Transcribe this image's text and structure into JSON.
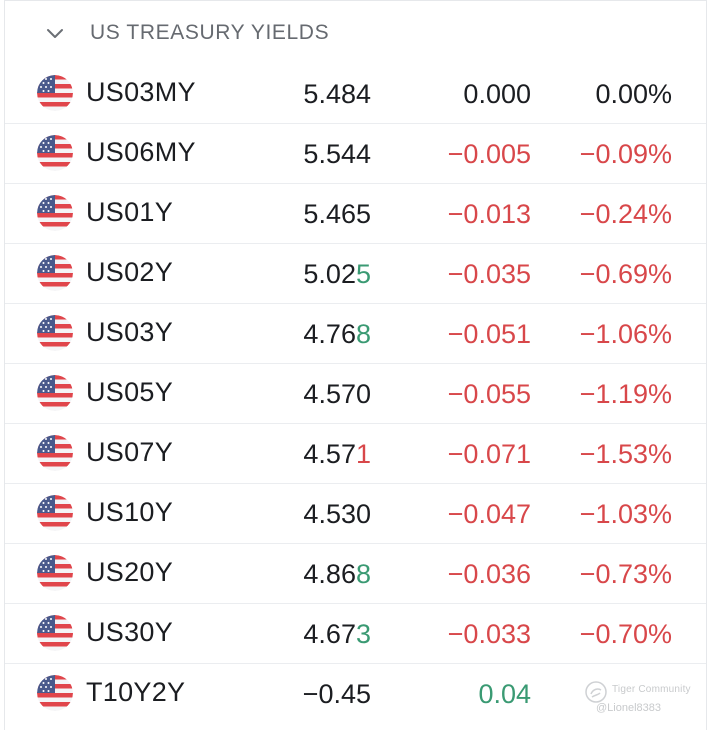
{
  "section": {
    "title": "US TREASURY YIELDS",
    "collapse_icon": "chevron-down-icon"
  },
  "colors": {
    "up": "#3a9a73",
    "down": "#d8474a",
    "neutral": "#1b1d21"
  },
  "rows": [
    {
      "symbol": "US03MY",
      "price_main": "5.484",
      "price_last": "",
      "last_dir": "",
      "change": "0.000",
      "change_pct": "0.00%",
      "dir": "neutral"
    },
    {
      "symbol": "US06MY",
      "price_main": "5.544",
      "price_last": "",
      "last_dir": "",
      "change": "−0.005",
      "change_pct": "−0.09%",
      "dir": "neg"
    },
    {
      "symbol": "US01Y",
      "price_main": "5.465",
      "price_last": "",
      "last_dir": "",
      "change": "−0.013",
      "change_pct": "−0.24%",
      "dir": "neg"
    },
    {
      "symbol": "US02Y",
      "price_main": "5.02",
      "price_last": "5",
      "last_dir": "up",
      "change": "−0.035",
      "change_pct": "−0.69%",
      "dir": "neg"
    },
    {
      "symbol": "US03Y",
      "price_main": "4.76",
      "price_last": "8",
      "last_dir": "up",
      "change": "−0.051",
      "change_pct": "−1.06%",
      "dir": "neg"
    },
    {
      "symbol": "US05Y",
      "price_main": "4.570",
      "price_last": "",
      "last_dir": "",
      "change": "−0.055",
      "change_pct": "−1.19%",
      "dir": "neg"
    },
    {
      "symbol": "US07Y",
      "price_main": "4.57",
      "price_last": "1",
      "last_dir": "down",
      "change": "−0.071",
      "change_pct": "−1.53%",
      "dir": "neg"
    },
    {
      "symbol": "US10Y",
      "price_main": "4.530",
      "price_last": "",
      "last_dir": "",
      "change": "−0.047",
      "change_pct": "−1.03%",
      "dir": "neg"
    },
    {
      "symbol": "US20Y",
      "price_main": "4.86",
      "price_last": "8",
      "last_dir": "up",
      "change": "−0.036",
      "change_pct": "−0.73%",
      "dir": "neg"
    },
    {
      "symbol": "US30Y",
      "price_main": "4.67",
      "price_last": "3",
      "last_dir": "up",
      "change": "−0.033",
      "change_pct": "−0.70%",
      "dir": "neg"
    },
    {
      "symbol": "T10Y2Y",
      "price_main": "−0.45",
      "price_last": "",
      "last_dir": "",
      "change": "0.04",
      "change_pct": "",
      "dir": "pos"
    }
  ],
  "watermark": {
    "brand": "Tiger Community",
    "user": "@Lionel8383"
  }
}
